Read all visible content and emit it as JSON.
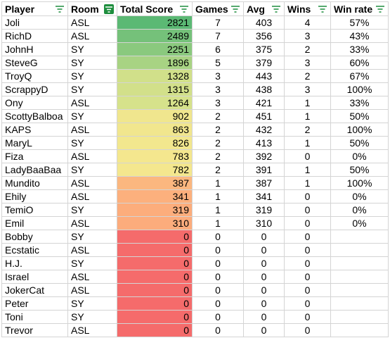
{
  "headers": [
    "Player",
    "Room",
    "Total Score",
    "Games",
    "Avg",
    "Wins",
    "Win rate"
  ],
  "rows": [
    {
      "player": "Joli",
      "room": "ASL",
      "score": "2821",
      "games": "7",
      "avg": "403",
      "wins": "4",
      "rate": "57%",
      "color": "#5bb974"
    },
    {
      "player": "RichD",
      "room": "ASL",
      "score": "2489",
      "games": "7",
      "avg": "356",
      "wins": "3",
      "rate": "43%",
      "color": "#75c17a"
    },
    {
      "player": "JohnH",
      "room": "SY",
      "score": "2251",
      "games": "6",
      "avg": "375",
      "wins": "2",
      "rate": "33%",
      "color": "#8ac97e"
    },
    {
      "player": "SteveG",
      "room": "SY",
      "score": "1896",
      "games": "5",
      "avg": "379",
      "wins": "3",
      "rate": "60%",
      "color": "#a8d383"
    },
    {
      "player": "TroyQ",
      "room": "SY",
      "score": "1328",
      "games": "3",
      "avg": "443",
      "wins": "2",
      "rate": "67%",
      "color": "#d1e08a"
    },
    {
      "player": "ScrappyD",
      "room": "SY",
      "score": "1315",
      "games": "3",
      "avg": "438",
      "wins": "3",
      "rate": "100%",
      "color": "#d2e08a"
    },
    {
      "player": "Ony",
      "room": "ASL",
      "score": "1264",
      "games": "3",
      "avg": "421",
      "wins": "1",
      "rate": "33%",
      "color": "#d6e28b"
    },
    {
      "player": "ScottyBalboa",
      "room": "SY",
      "score": "902",
      "games": "2",
      "avg": "451",
      "wins": "1",
      "rate": "50%",
      "color": "#f0e68e"
    },
    {
      "player": "KAPS",
      "room": "ASL",
      "score": "863",
      "games": "2",
      "avg": "432",
      "wins": "2",
      "rate": "100%",
      "color": "#f1e68e"
    },
    {
      "player": "MaryL",
      "room": "SY",
      "score": "826",
      "games": "2",
      "avg": "413",
      "wins": "1",
      "rate": "50%",
      "color": "#f2e78e"
    },
    {
      "player": "Fiza",
      "room": "ASL",
      "score": "783",
      "games": "2",
      "avg": "392",
      "wins": "0",
      "rate": "0%",
      "color": "#f4e78e"
    },
    {
      "player": "LadyBaaBaa",
      "room": "SY",
      "score": "782",
      "games": "2",
      "avg": "391",
      "wins": "1",
      "rate": "50%",
      "color": "#f4e78e"
    },
    {
      "player": "Mundito",
      "room": "ASL",
      "score": "387",
      "games": "1",
      "avg": "387",
      "wins": "1",
      "rate": "100%",
      "color": "#fbb77f"
    },
    {
      "player": "Ehily",
      "room": "ASL",
      "score": "341",
      "games": "1",
      "avg": "341",
      "wins": "0",
      "rate": "0%",
      "color": "#fcb07d"
    },
    {
      "player": "TemiO",
      "room": "SY",
      "score": "319",
      "games": "1",
      "avg": "319",
      "wins": "0",
      "rate": "0%",
      "color": "#fcad7c"
    },
    {
      "player": "Emil",
      "room": "ASL",
      "score": "310",
      "games": "1",
      "avg": "310",
      "wins": "0",
      "rate": "0%",
      "color": "#fcac7c"
    },
    {
      "player": "Bobby",
      "room": "SY",
      "score": "0",
      "games": "0",
      "avg": "0",
      "wins": "0",
      "rate": "",
      "color": "#f56b6b"
    },
    {
      "player": "Ecstatic",
      "room": "ASL",
      "score": "0",
      "games": "0",
      "avg": "0",
      "wins": "0",
      "rate": "",
      "color": "#f56b6b"
    },
    {
      "player": "H.J.",
      "room": "SY",
      "score": "0",
      "games": "0",
      "avg": "0",
      "wins": "0",
      "rate": "",
      "color": "#f56b6b"
    },
    {
      "player": "Israel",
      "room": "ASL",
      "score": "0",
      "games": "0",
      "avg": "0",
      "wins": "0",
      "rate": "",
      "color": "#f56b6b"
    },
    {
      "player": "JokerCat",
      "room": "ASL",
      "score": "0",
      "games": "0",
      "avg": "0",
      "wins": "0",
      "rate": "",
      "color": "#f56b6b"
    },
    {
      "player": "Peter",
      "room": "SY",
      "score": "0",
      "games": "0",
      "avg": "0",
      "wins": "0",
      "rate": "",
      "color": "#f56b6b"
    },
    {
      "player": "Toni",
      "room": "SY",
      "score": "0",
      "games": "0",
      "avg": "0",
      "wins": "0",
      "rate": "",
      "color": "#f56b6b"
    },
    {
      "player": "Trevor",
      "room": "ASL",
      "score": "0",
      "games": "0",
      "avg": "0",
      "wins": "0",
      "rate": "",
      "color": "#f56b6b"
    }
  ],
  "filter_icons": {
    "normal": "filter-icon",
    "active": "filter-active-icon"
  },
  "colors": {
    "active_filter": "#1e8e3e",
    "grid": "#d4d4d4"
  }
}
